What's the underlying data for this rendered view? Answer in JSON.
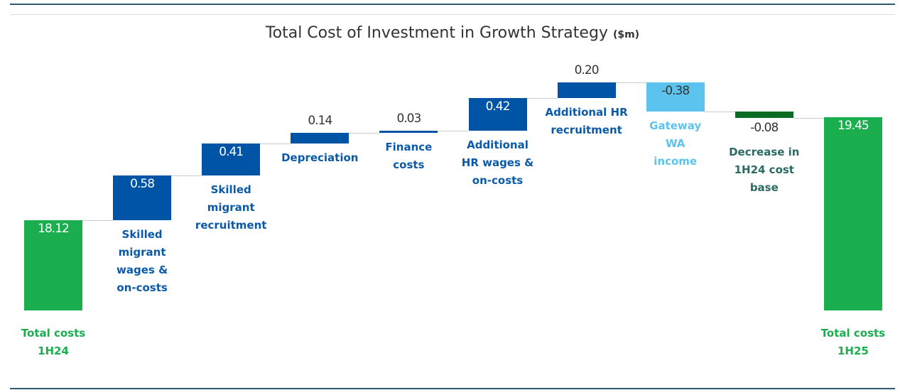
{
  "chart_data": {
    "type": "waterfall",
    "title": "Total Cost of Investment in Growth Strategy",
    "unit": "($m)",
    "categories": [
      "Total costs\n1H24",
      "Skilled\nmigrant\nwages &\non-costs",
      "Skilled\nmigrant\nrecruitment",
      "Depreciation",
      "Finance\ncosts",
      "Additional\nHR wages &\non-costs",
      "Additional HR\nrecruitment",
      "Gateway\nWA\nincome",
      "Decrease in\n1H24 cost\nbase",
      "Total costs\n1H25"
    ],
    "measure": [
      "total",
      "relative",
      "relative",
      "relative",
      "relative",
      "relative",
      "relative",
      "relative",
      "relative",
      "total"
    ],
    "values": [
      18.12,
      0.58,
      0.41,
      0.14,
      0.03,
      0.42,
      0.2,
      -0.38,
      -0.08,
      19.45
    ],
    "value_labels": [
      "18.12",
      "0.58",
      "0.41",
      "0.14",
      "0.03",
      "0.42",
      "0.20",
      "-0.38",
      "-0.08",
      "19.45"
    ],
    "colors": [
      "#1aae4f",
      "#0054a6",
      "#0054a6",
      "#0054a6",
      "#0054a6",
      "#0054a6",
      "#0054a6",
      "#5cc3ef",
      "#0b6b22",
      "#1aae4f"
    ],
    "label_colors": [
      "#1aae4f",
      "#0b5aa8",
      "#0b5aa8",
      "#0b5aa8",
      "#0b5aa8",
      "#0b5aa8",
      "#0b5aa8",
      "#5cc3ef",
      "#2a6a62",
      "#1aae4f"
    ]
  }
}
